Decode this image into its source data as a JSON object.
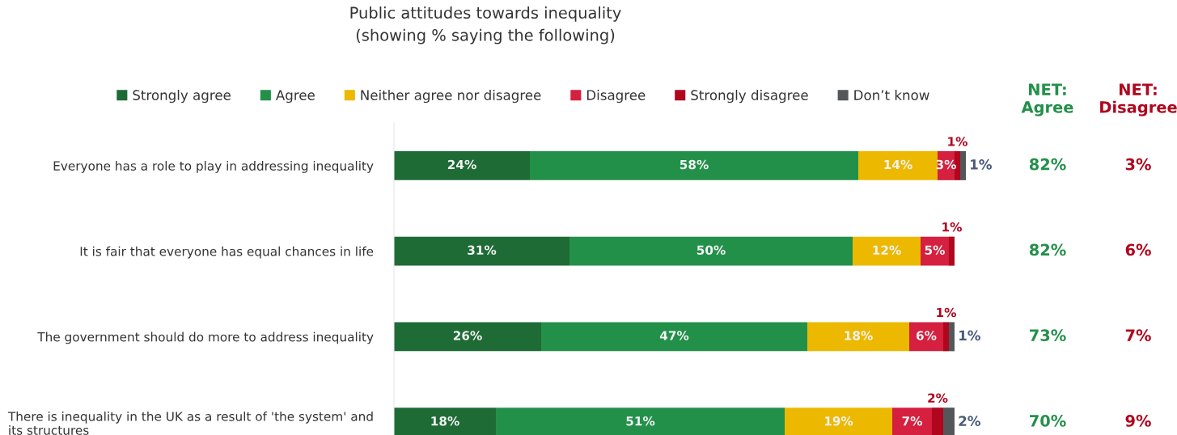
{
  "chart_data": {
    "type": "bar",
    "orientation": "horizontal",
    "stacked": true,
    "title": "Public attitudes towards inequality\n(showing % saying the following)",
    "categories": [
      "Everyone has a role to play in addressing inequality",
      "It is fair that everyone has equal chances in life",
      "The government should do more to address inequality",
      "There is inequality in the UK as a result of 'the system' and\nits structures"
    ],
    "series": [
      {
        "name": "Strongly agree",
        "color": "#1e6b36",
        "values": [
          24,
          31,
          26,
          18
        ],
        "value_labels": [
          "24%",
          "31%",
          "26%",
          "18%"
        ]
      },
      {
        "name": "Agree",
        "color": "#23904a",
        "values": [
          58,
          50,
          47,
          51
        ],
        "value_labels": [
          "58%",
          "50%",
          "47%",
          "51%"
        ]
      },
      {
        "name": "Neither agree nor disagree",
        "color": "#ecb800",
        "values": [
          14,
          12,
          18,
          19
        ],
        "value_labels": [
          "14%",
          "12%",
          "18%",
          "19%"
        ]
      },
      {
        "name": "Disagree",
        "color": "#d5203f",
        "values": [
          3,
          5,
          6,
          7
        ],
        "value_labels": [
          "3%",
          "5%",
          "6%",
          "7%"
        ]
      },
      {
        "name": "Strongly disagree",
        "color": "#b0071e",
        "values": [
          1,
          1,
          1,
          2
        ],
        "value_labels": [
          "1%",
          "1%",
          "1%",
          "2%"
        ]
      },
      {
        "name": "Don’t know",
        "color": "#54575a",
        "values": [
          1,
          0,
          1,
          2
        ],
        "value_labels": [
          "1%",
          null,
          "1%",
          "2%"
        ]
      }
    ],
    "annotations": [
      "NET:\nAgree",
      "NET:\nDisagree",
      "82%",
      "3%",
      "82%",
      "6%",
      "73%",
      "7%",
      "70%",
      "9%"
    ],
    "legend": "top",
    "grid": false,
    "tick_labels": "y"
  }
}
